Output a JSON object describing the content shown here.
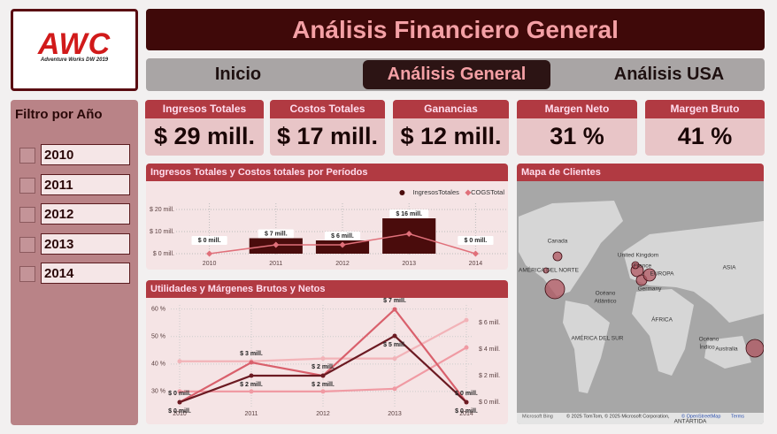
{
  "logo": {
    "title": "AWC",
    "subtitle": "Adventure Works DW 2019"
  },
  "header": {
    "title": "Análisis Financiero General"
  },
  "nav": [
    {
      "label": "Inicio"
    },
    {
      "label": "Análisis General",
      "active": true
    },
    {
      "label": "Análisis USA"
    }
  ],
  "filter": {
    "title": "Filtro por Año",
    "options": [
      "2010",
      "2011",
      "2012",
      "2013",
      "2014"
    ]
  },
  "kpis": [
    {
      "label": "Ingresos Totales",
      "value": "$ 29 mill."
    },
    {
      "label": "Costos Totales",
      "value": "$ 17 mill."
    },
    {
      "label": "Ganancias",
      "value": "$ 12 mill."
    },
    {
      "label": "Margen Neto",
      "value": "31 %"
    },
    {
      "label": "Margen Bruto",
      "value": "41 %"
    }
  ],
  "map": {
    "title": "Mapa de Clientes",
    "labels": [
      "Canada",
      "United Kingdom",
      "France",
      "EUROPA",
      "Germany",
      "ASIA",
      "AMÉRICA DEL NORTE",
      "Océano",
      "Atlántico",
      "ÁFRICA",
      "AMÉRICA DEL SUR",
      "Océano",
      "Índico",
      "Australia",
      "ANTÁRTIDA"
    ],
    "attribution": [
      "Microsoft Bing",
      "© 2025 TomTom, © 2025 Microsoft Corporation,",
      "© OpenStreetMap",
      "Terms"
    ]
  },
  "chart_data": [
    {
      "type": "bar",
      "title": "Ingresos Totales y Costos totales por Períodos",
      "categories": [
        "2010",
        "2011",
        "2012",
        "2013",
        "2014"
      ],
      "series": [
        {
          "name": "IngresosTotales",
          "color": "#4a0c0c",
          "values": [
            0,
            7,
            6,
            16,
            0
          ],
          "value_labels": [
            "$ 0 mill.",
            "$ 7 mill.",
            "$ 6 mill.",
            "$ 16 mill.",
            "$ 0 mill."
          ]
        },
        {
          "name": "COGSTotal",
          "color": "#e0707a",
          "type": "line",
          "values": [
            0,
            4,
            4,
            9,
            0
          ]
        }
      ],
      "ylim": [
        -1.2,
        22.8
      ],
      "yticks": [
        {
          "value": 0,
          "label": "$ 0 mill."
        },
        {
          "value": 10,
          "label": "$ 10 mill."
        },
        {
          "value": 20,
          "label": "$ 20 mill."
        }
      ],
      "grid": true,
      "legend": "top-right"
    },
    {
      "type": "line",
      "title": "Utilidades y Márgenes Brutos y Netos",
      "categories": [
        "2010",
        "2011",
        "2012",
        "2013",
        "2014"
      ],
      "series": [
        {
          "color": "#f2b3b8",
          "values": [
            41,
            41,
            42,
            42,
            56
          ]
        },
        {
          "color": "#f09aa3",
          "values": [
            30,
            30,
            30,
            31,
            46
          ]
        },
        {
          "color": "#d9606c",
          "axis": "y2",
          "values": [
            0,
            3,
            2,
            7,
            0
          ],
          "value_labels": [
            "$ 0 mill.",
            "$ 3 mill.",
            "$ 2 mill.",
            "$ 7 mill.",
            "$ 0 mill."
          ]
        },
        {
          "color": "#6b1a22",
          "axis": "y2",
          "values": [
            0,
            2,
            2,
            5,
            0
          ],
          "value_labels": [
            "$ 0 mill.",
            "$ 2 mill.",
            "$ 2 mill.",
            "$ 5 mill.",
            "$ 0 mill."
          ]
        }
      ],
      "ylim": [
        24.5,
        61.5
      ],
      "yticks": [
        {
          "value": 30,
          "label": "30 %"
        },
        {
          "value": 40,
          "label": "40 %"
        },
        {
          "value": 50,
          "label": "50 %"
        },
        {
          "value": 60,
          "label": "60 %"
        }
      ],
      "y2lim": [
        -0.33,
        7.33
      ],
      "y2ticks": [
        {
          "value": 0,
          "label": "$ 0 mill."
        },
        {
          "value": 2,
          "label": "$ 2 mill."
        },
        {
          "value": 4,
          "label": "$ 4 mill."
        },
        {
          "value": 6,
          "label": "$ 6 mill."
        }
      ],
      "grid": true
    }
  ]
}
